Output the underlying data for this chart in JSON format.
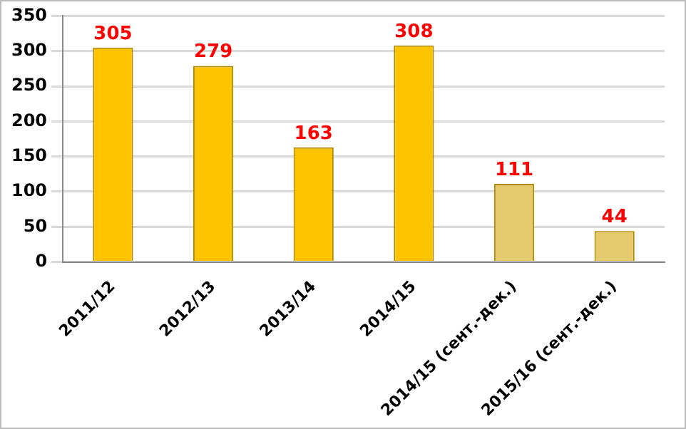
{
  "chart_data": {
    "type": "bar",
    "categories": [
      "2011/12",
      "2012/13",
      "2013/14",
      "2014/15",
      "2014/15 (сент.-дек.)",
      "2015/16 (сент.-дек.)"
    ],
    "values": [
      305,
      279,
      163,
      308,
      111,
      44
    ],
    "colors": [
      "#ffc400",
      "#ffc400",
      "#ffc400",
      "#ffc400",
      "#e6cb6e",
      "#e6cb6e"
    ],
    "ylim": [
      0,
      350
    ],
    "yticks": [
      0,
      50,
      100,
      150,
      200,
      250,
      300,
      350
    ],
    "grid": "y",
    "data_labels": true,
    "legend": false
  }
}
